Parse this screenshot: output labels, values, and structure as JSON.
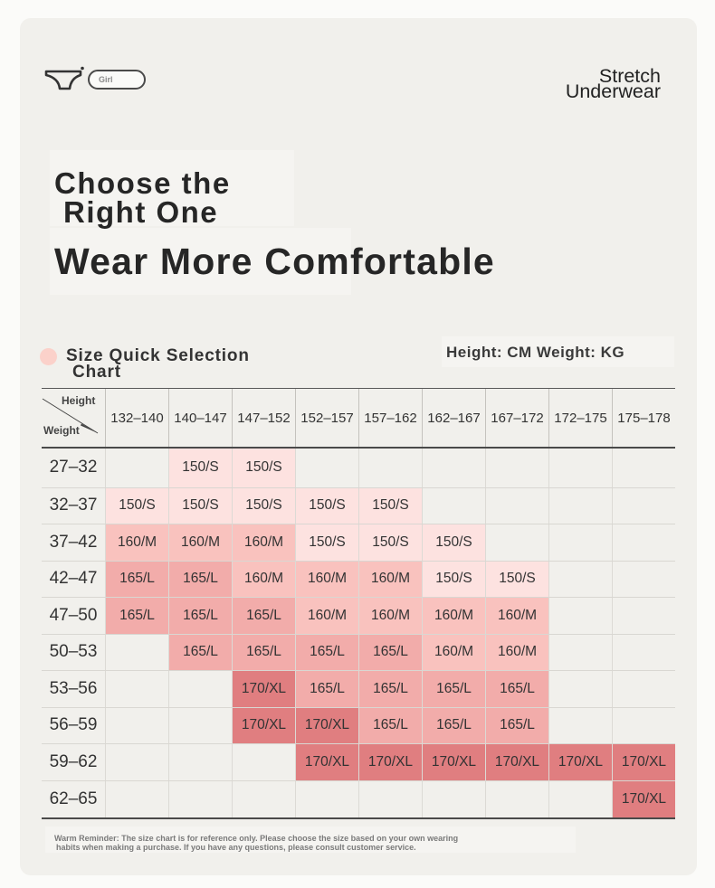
{
  "colors": {
    "page_background": "#fbfbf9",
    "card_background": "#f1f0ec",
    "section_bullet": "#fbd1ca"
  },
  "icons": {
    "brand_logo": "underwear-icon",
    "section_bullet": "dot-icon"
  },
  "brand_tag": {
    "label": "Girl"
  },
  "product": {
    "name_lines": [
      "Stretch",
      "Underwear"
    ]
  },
  "headline": {
    "line1": "Choose the",
    "line2": "Right One",
    "tagline": "Wear More Comfortable"
  },
  "chart_data": {
    "type": "table",
    "title_lines": [
      "Size Quick Selection",
      "Chart"
    ],
    "units": "Height: CM Weight: KG",
    "corner": {
      "column_axis": "Height",
      "row_axis": "Weight"
    },
    "columns": [
      "132–140",
      "140–147",
      "147–152",
      "152–157",
      "157–162",
      "162–167",
      "167–172",
      "172–175",
      "175–178"
    ],
    "rows": [
      {
        "weight": "27–32",
        "sizes": [
          null,
          "150/S",
          "150/S",
          null,
          null,
          null,
          null,
          null,
          null
        ]
      },
      {
        "weight": "32–37",
        "sizes": [
          "150/S",
          "150/S",
          "150/S",
          "150/S",
          "150/S",
          null,
          null,
          null,
          null
        ]
      },
      {
        "weight": "37–42",
        "sizes": [
          "160/M",
          "160/M",
          "160/M",
          "150/S",
          "150/S",
          "150/S",
          null,
          null,
          null
        ]
      },
      {
        "weight": "42–47",
        "sizes": [
          "165/L",
          "165/L",
          "160/M",
          "160/M",
          "160/M",
          "150/S",
          "150/S",
          null,
          null
        ]
      },
      {
        "weight": "47–50",
        "sizes": [
          "165/L",
          "165/L",
          "165/L",
          "160/M",
          "160/M",
          "160/M",
          "160/M",
          null,
          null
        ]
      },
      {
        "weight": "50–53",
        "sizes": [
          null,
          "165/L",
          "165/L",
          "165/L",
          "165/L",
          "160/M",
          "160/M",
          null,
          null
        ]
      },
      {
        "weight": "53–56",
        "sizes": [
          null,
          null,
          "170/XL",
          "165/L",
          "165/L",
          "165/L",
          "165/L",
          null,
          null
        ]
      },
      {
        "weight": "56–59",
        "sizes": [
          null,
          null,
          "170/XL",
          "170/XL",
          "165/L",
          "165/L",
          "165/L",
          null,
          null
        ]
      },
      {
        "weight": "59–62",
        "sizes": [
          null,
          null,
          null,
          "170/XL",
          "170/XL",
          "170/XL",
          "170/XL",
          "170/XL",
          "170/XL"
        ]
      },
      {
        "weight": "62–65",
        "sizes": [
          null,
          null,
          null,
          null,
          null,
          null,
          null,
          null,
          "170/XL"
        ]
      }
    ],
    "size_colors": {
      "150/S": "#fde2e0",
      "160/M": "#f9c2be",
      "165/L": "#f2acaa",
      "170/XL": "#e07e80"
    }
  },
  "footer": {
    "lines": [
      "Warm Reminder: The size chart is for reference only. Please choose the size based on your own wearing",
      "habits when making a purchase. If you have any questions, please consult customer service."
    ]
  }
}
